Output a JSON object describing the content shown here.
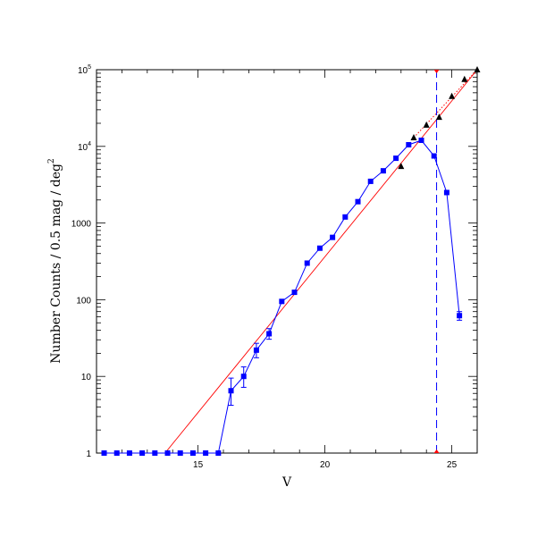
{
  "chart_data": {
    "type": "scatter",
    "title": "",
    "xlabel": "V",
    "ylabel": "Number Counts / 0.5 mag / deg",
    "ylabel_superscript": "2",
    "xlim": [
      11.0,
      26.0
    ],
    "ylim": [
      1,
      100000
    ],
    "yscale": "log",
    "x_ticks": [
      15,
      20,
      25
    ],
    "x_tick_labels": [
      "15",
      "20",
      "25"
    ],
    "y_ticks": [
      1,
      10,
      100,
      1000,
      10000,
      100000
    ],
    "y_tick_labels": [
      {
        "base": "1",
        "exp": ""
      },
      {
        "base": "10",
        "exp": ""
      },
      {
        "base": "100",
        "exp": ""
      },
      {
        "base": "1000",
        "exp": ""
      },
      {
        "base": "10",
        "exp": "4"
      },
      {
        "base": "10",
        "exp": "5"
      }
    ],
    "series": [
      {
        "marker": "square",
        "color": "#0000ff",
        "connected": true,
        "x": [
          11.3,
          11.8,
          12.3,
          12.8,
          13.3,
          13.8,
          14.3,
          14.8,
          15.3,
          15.8,
          16.3,
          16.8,
          17.3,
          17.8,
          18.3,
          18.8,
          19.3,
          19.8,
          20.3,
          20.8,
          21.3,
          21.8,
          22.3,
          22.8,
          23.3,
          23.8,
          24.3,
          24.8,
          25.3
        ],
        "y": [
          1,
          1,
          1,
          1,
          1,
          1,
          1,
          1,
          1,
          1,
          6.5,
          10,
          22,
          36,
          95,
          125,
          300,
          470,
          650,
          1200,
          1900,
          3500,
          4800,
          7000,
          10500,
          12000,
          7500,
          2500,
          62
        ],
        "yerr_low": [
          0,
          0,
          0,
          0,
          0,
          0,
          0,
          0,
          0,
          0,
          2.3,
          2.8,
          4.5,
          5.5,
          0,
          0,
          0,
          0,
          0,
          0,
          0,
          0,
          0,
          0,
          0,
          0,
          0,
          0,
          8
        ],
        "yerr_high": [
          0,
          0,
          0,
          0,
          0,
          0,
          0,
          0,
          0,
          0,
          3.0,
          3.3,
          5.0,
          6.0,
          0,
          0,
          0,
          0,
          0,
          0,
          0,
          0,
          0,
          0,
          0,
          0,
          0,
          0,
          8
        ]
      },
      {
        "marker": "triangle",
        "color": "#000000",
        "connected": false,
        "x": [
          23.0,
          23.5,
          24.0,
          24.5,
          25.0,
          25.5,
          26.0
        ],
        "y": [
          5500,
          13000,
          19000,
          24000,
          45000,
          75000,
          100000
        ]
      }
    ],
    "fit_line": {
      "color": "#ff0000",
      "x": [
        13.7,
        26.0
      ],
      "y": [
        1,
        100000
      ]
    },
    "extrapolation": {
      "color": "#ff0000",
      "style": "dotted",
      "x": [
        23.5,
        26.0
      ],
      "y": [
        13000,
        100000
      ]
    },
    "limit_line": {
      "color": "#0000ff",
      "style": "dashed",
      "x": 24.4
    },
    "limit_marker_color": "#ff0000"
  }
}
